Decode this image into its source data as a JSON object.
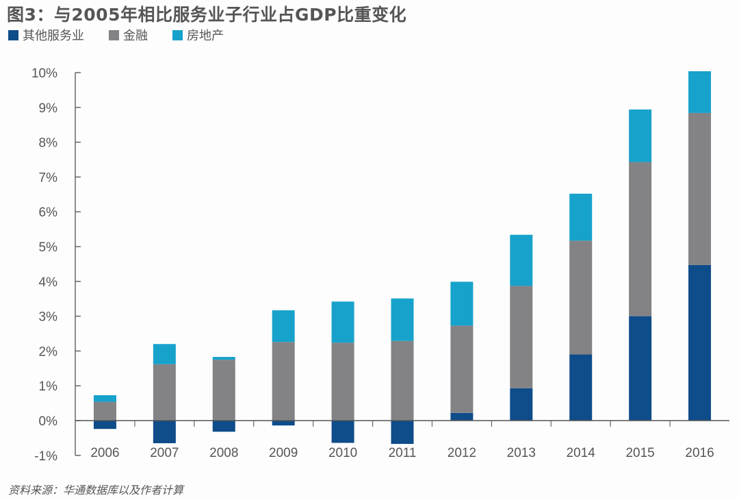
{
  "chart_data": {
    "type": "bar",
    "stacked": true,
    "title": "图3：与2005年相比服务业子行业占GDP比重变化",
    "xlabel": "",
    "ylabel": "",
    "ylim": [
      -1,
      10
    ],
    "yticks": [
      "-1%",
      "0%",
      "1%",
      "2%",
      "3%",
      "4%",
      "5%",
      "6%",
      "7%",
      "8%",
      "9%",
      "10%"
    ],
    "grid": false,
    "legend_position": "top-left",
    "categories": [
      "2006",
      "2007",
      "2008",
      "2009",
      "2010",
      "2011",
      "2012",
      "2013",
      "2014",
      "2015",
      "2016"
    ],
    "series": [
      {
        "name": "其他服务业",
        "color": "#0f4c8a",
        "values": [
          -0.24,
          -0.65,
          -0.32,
          -0.14,
          -0.64,
          -0.67,
          0.22,
          0.93,
          1.9,
          3.0,
          4.47
        ]
      },
      {
        "name": "金融",
        "color": "#838386",
        "values": [
          0.54,
          1.62,
          1.75,
          2.26,
          2.24,
          2.29,
          2.51,
          2.94,
          3.27,
          4.43,
          4.37
        ]
      },
      {
        "name": "房地产",
        "color": "#17a2cc",
        "values": [
          0.19,
          0.58,
          0.08,
          0.91,
          1.18,
          1.22,
          1.26,
          1.47,
          1.35,
          1.51,
          1.2
        ]
      }
    ],
    "source": "资料来源：华通数据库以及作者计算"
  }
}
